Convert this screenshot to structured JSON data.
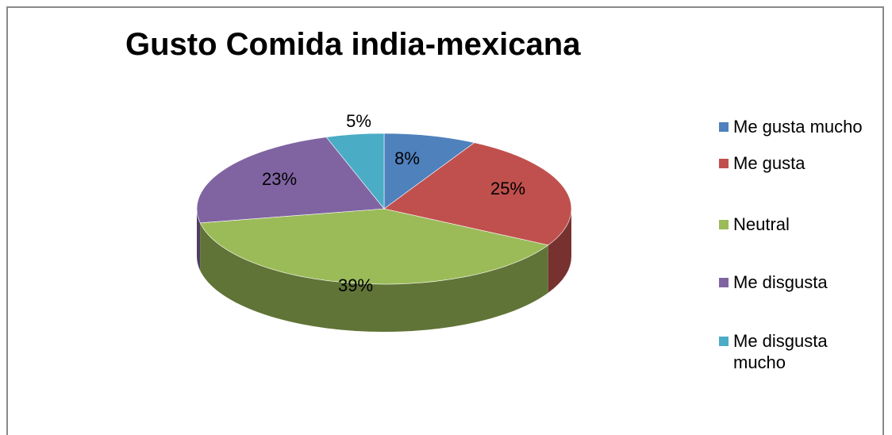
{
  "chart_data": {
    "type": "pie",
    "title": "Gusto Comida india-mexicana",
    "slices": [
      {
        "label": "Me gusta mucho",
        "value": 8,
        "display": "8%",
        "color": "#4F81BD"
      },
      {
        "label": "Me gusta",
        "value": 25,
        "display": "25%",
        "color": "#C0504D"
      },
      {
        "label": "Neutral",
        "value": 39,
        "display": "39%",
        "color": "#9BBB59"
      },
      {
        "label": "Me disgusta",
        "value": 23,
        "display": "23%",
        "color": "#8064A2"
      },
      {
        "label": "Me disgusta mucho",
        "value": 5,
        "display": "5%",
        "color": "#4BACC6"
      }
    ],
    "legend": {
      "placement": "right",
      "entries": [
        "Me gusta mucho",
        "Me gusta",
        "Neutral",
        "Me disgusta",
        "Me disgusta mucho"
      ]
    },
    "style": "3d-pie"
  }
}
